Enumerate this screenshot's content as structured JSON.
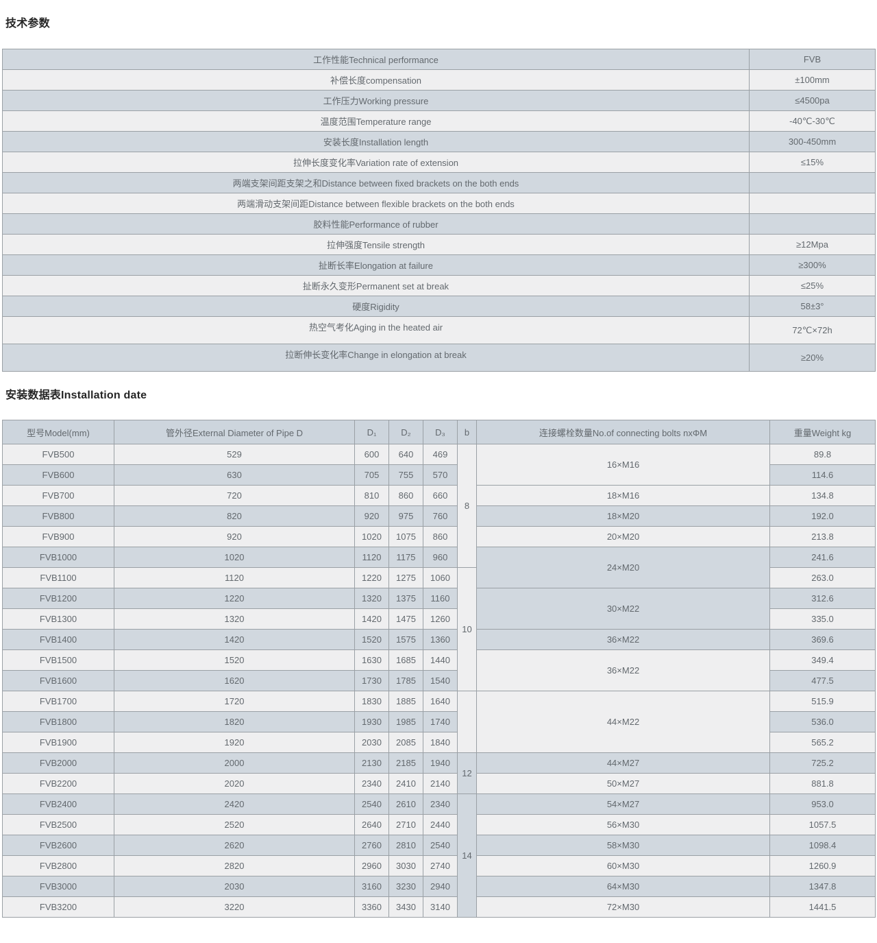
{
  "colors": {
    "row_blue": "#d1d8df",
    "row_light": "#efeff0",
    "header_blue": "#cdd5dd",
    "border": "#9aa0a5",
    "title_text": "#262626",
    "cell_text": "#63696e"
  },
  "sections": {
    "tech": {
      "title": "技术参数"
    },
    "install": {
      "title": "安装数据表Installation date"
    }
  },
  "tech_table": {
    "rows": [
      {
        "label": "工作性能Technical performance",
        "value": "FVB"
      },
      {
        "label": "补偿长度compensation",
        "value": "±100mm"
      },
      {
        "label": "工作压力Working pressure",
        "value": "≤4500pa"
      },
      {
        "label": "温度范围Temperature range",
        "value": "-40℃-30℃"
      },
      {
        "label": "安装长度Installation length",
        "value": "300-450mm"
      },
      {
        "label": "拉伸长度变化率Variation rate of extension",
        "value": "≤15%"
      },
      {
        "label": "两端支架间距支架之和Distance between fixed brackets on the both ends",
        "value": ""
      },
      {
        "label": "两端滑动支架间距Distance between flexible brackets on the both ends",
        "value": ""
      },
      {
        "label": "胶料性能Performance of rubber",
        "value": ""
      },
      {
        "label": "拉伸强度Tensile strength",
        "value": "≥12Mpa"
      },
      {
        "label": "扯断长率Elongation at failure",
        "value": "≥300%"
      },
      {
        "label": "扯断永久变形Permanent set at break",
        "value": "≤25%"
      },
      {
        "label": "硬度Rigidity",
        "value": "58±3°"
      },
      {
        "label": "热空气考化Aging in the heated air",
        "value": "72℃×72h",
        "tall": true
      },
      {
        "label": "拉断伸长变化率Change in elongation at break",
        "value": "≥20%",
        "tall": true
      }
    ]
  },
  "install_table": {
    "headers": {
      "model": "型号Model(mm)",
      "pipe": "管外径External Diameter of Pipe D",
      "d1": "D₁",
      "d2": "D₂",
      "d3": "D₃",
      "b": "b",
      "bolts": "连接螺栓数量No.of connecting bolts nxΦM",
      "weight": "重量Weight kg"
    },
    "rows": [
      {
        "model": "FVB500",
        "pipe": "529",
        "d1": "600",
        "d2": "640",
        "d3": "469",
        "weight": "89.8"
      },
      {
        "model": "FVB600",
        "pipe": "630",
        "d1": "705",
        "d2": "755",
        "d3": "570",
        "weight": "114.6"
      },
      {
        "model": "FVB700",
        "pipe": "720",
        "d1": "810",
        "d2": "860",
        "d3": "660",
        "weight": "134.8"
      },
      {
        "model": "FVB800",
        "pipe": "820",
        "d1": "920",
        "d2": "975",
        "d3": "760",
        "weight": "192.0"
      },
      {
        "model": "FVB900",
        "pipe": "920",
        "d1": "1020",
        "d2": "1075",
        "d3": "860",
        "weight": "213.8"
      },
      {
        "model": "FVB1000",
        "pipe": "1020",
        "d1": "1120",
        "d2": "1175",
        "d3": "960",
        "weight": "241.6"
      },
      {
        "model": "FVB1100",
        "pipe": "1120",
        "d1": "1220",
        "d2": "1275",
        "d3": "1060",
        "weight": "263.0"
      },
      {
        "model": "FVB1200",
        "pipe": "1220",
        "d1": "1320",
        "d2": "1375",
        "d3": "1160",
        "weight": "312.6"
      },
      {
        "model": "FVB1300",
        "pipe": "1320",
        "d1": "1420",
        "d2": "1475",
        "d3": "1260",
        "weight": "335.0"
      },
      {
        "model": "FVB1400",
        "pipe": "1420",
        "d1": "1520",
        "d2": "1575",
        "d3": "1360",
        "weight": "369.6"
      },
      {
        "model": "FVB1500",
        "pipe": "1520",
        "d1": "1630",
        "d2": "1685",
        "d3": "1440",
        "weight": "349.4"
      },
      {
        "model": "FVB1600",
        "pipe": "1620",
        "d1": "1730",
        "d2": "1785",
        "d3": "1540",
        "weight": "477.5"
      },
      {
        "model": "FVB1700",
        "pipe": "1720",
        "d1": "1830",
        "d2": "1885",
        "d3": "1640",
        "weight": "515.9"
      },
      {
        "model": "FVB1800",
        "pipe": "1820",
        "d1": "1930",
        "d2": "1985",
        "d3": "1740",
        "weight": "536.0"
      },
      {
        "model": "FVB1900",
        "pipe": "1920",
        "d1": "2030",
        "d2": "2085",
        "d3": "1840",
        "weight": "565.2"
      },
      {
        "model": "FVB2000",
        "pipe": "2000",
        "d1": "2130",
        "d2": "2185",
        "d3": "1940",
        "weight": "725.2"
      },
      {
        "model": "FVB2200",
        "pipe": "2020",
        "d1": "2340",
        "d2": "2410",
        "d3": "2140",
        "weight": "881.8"
      },
      {
        "model": "FVB2400",
        "pipe": "2420",
        "d1": "2540",
        "d2": "2610",
        "d3": "2340",
        "weight": "953.0"
      },
      {
        "model": "FVB2500",
        "pipe": "2520",
        "d1": "2640",
        "d2": "2710",
        "d3": "2440",
        "weight": "1057.5"
      },
      {
        "model": "FVB2600",
        "pipe": "2620",
        "d1": "2760",
        "d2": "2810",
        "d3": "2540",
        "weight": "1098.4"
      },
      {
        "model": "FVB2800",
        "pipe": "2820",
        "d1": "2960",
        "d2": "3030",
        "d3": "2740",
        "weight": "1260.9"
      },
      {
        "model": "FVB3000",
        "pipe": "2030",
        "d1": "3160",
        "d2": "3230",
        "d3": "2940",
        "weight": "1347.8"
      },
      {
        "model": "FVB3200",
        "pipe": "3220",
        "d1": "3360",
        "d2": "3430",
        "d3": "3140",
        "weight": "1441.5"
      }
    ],
    "b_groups": [
      {
        "start": 0,
        "span": 6,
        "value": "8"
      },
      {
        "start": 6,
        "span": 6,
        "value": "10"
      },
      {
        "start": 12,
        "span": 3,
        "value": ""
      },
      {
        "start": 15,
        "span": 2,
        "value": "12"
      },
      {
        "start": 17,
        "span": 6,
        "value": "14"
      }
    ],
    "bolt_groups": [
      {
        "start": 0,
        "span": 2,
        "value": "16×M16"
      },
      {
        "start": 2,
        "span": 1,
        "value": "18×M16"
      },
      {
        "start": 3,
        "span": 1,
        "value": "18×M20"
      },
      {
        "start": 4,
        "span": 1,
        "value": "20×M20"
      },
      {
        "start": 5,
        "span": 2,
        "value": "24×M20"
      },
      {
        "start": 7,
        "span": 2,
        "value": "30×M22"
      },
      {
        "start": 9,
        "span": 1,
        "value": "36×M22"
      },
      {
        "start": 10,
        "span": 2,
        "value": "36×M22"
      },
      {
        "start": 12,
        "span": 3,
        "value": "44×M22"
      },
      {
        "start": 15,
        "span": 1,
        "value": "44×M27"
      },
      {
        "start": 16,
        "span": 1,
        "value": "50×M27"
      },
      {
        "start": 17,
        "span": 1,
        "value": "54×M27"
      },
      {
        "start": 18,
        "span": 1,
        "value": "56×M30"
      },
      {
        "start": 19,
        "span": 1,
        "value": "58×M30"
      },
      {
        "start": 20,
        "span": 1,
        "value": "60×M30"
      },
      {
        "start": 21,
        "span": 1,
        "value": "64×M30"
      },
      {
        "start": 22,
        "span": 1,
        "value": "72×M30"
      }
    ]
  }
}
